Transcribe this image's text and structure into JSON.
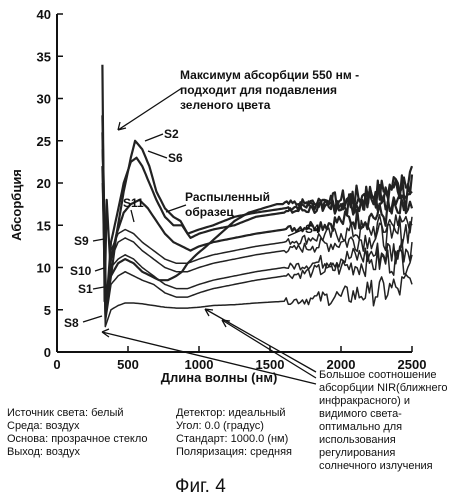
{
  "chart_data": {
    "type": "line",
    "title": "",
    "xlabel": "Длина волны (нм)",
    "ylabel": "Абсорбция",
    "xlim": [
      0,
      2500
    ],
    "ylim": [
      0,
      40
    ],
    "xticks": [
      "0",
      "500",
      "1000",
      "1500",
      "2000",
      "2500"
    ],
    "yticks": [
      "0",
      "5",
      "10",
      "15",
      "20",
      "25",
      "30",
      "35",
      "40"
    ],
    "grid": false,
    "legend": "none",
    "series": [
      {
        "name": "S2",
        "x": [
          320,
          335,
          350,
          380,
          420,
          470,
          520,
          550,
          600,
          650,
          700,
          760,
          820,
          870,
          920,
          1000,
          1100,
          1250,
          1400,
          1600,
          1800,
          2000,
          2150,
          2300,
          2400,
          2500
        ],
        "y": [
          34,
          6,
          18,
          9,
          14,
          19,
          23,
          25,
          24,
          22,
          19,
          17,
          16,
          15.5,
          14,
          14.5,
          15,
          16,
          16.5,
          17,
          17.5,
          18,
          18.5,
          19,
          20,
          22
        ]
      },
      {
        "name": "S6",
        "x": [
          320,
          345,
          380,
          420,
          470,
          520,
          560,
          600,
          650,
          700,
          760,
          820,
          880,
          940,
          1000,
          1100,
          1250,
          1400,
          1600,
          1800,
          2000,
          2150,
          2300,
          2400,
          2500
        ],
        "y": [
          28,
          5,
          13,
          16,
          20,
          22.5,
          23,
          22,
          20,
          18,
          16,
          15,
          15,
          13.5,
          14,
          14.5,
          15,
          16,
          16.5,
          17,
          17.5,
          18,
          18.5,
          19,
          21
        ]
      },
      {
        "name": "S11",
        "x": [
          320,
          345,
          380,
          420,
          470,
          520,
          580,
          640,
          700,
          760,
          820,
          880,
          940,
          1000,
          1100,
          1250,
          1400,
          1600,
          1800,
          2000,
          2200,
          2400,
          2500
        ],
        "y": [
          26,
          6,
          11,
          14,
          16.5,
          17.5,
          18,
          17,
          15.5,
          14,
          13,
          12.5,
          12,
          12.5,
          13,
          13.5,
          14,
          14.5,
          15,
          15.5,
          16,
          16.5,
          17
        ]
      },
      {
        "name": "Распыленный образец",
        "x": [
          320,
          345,
          380,
          430,
          480,
          540,
          600,
          660,
          720,
          780,
          840,
          880,
          920,
          980,
          1050,
          1150,
          1250,
          1350,
          1450,
          1550,
          1700,
          1900,
          2100,
          2300,
          2500
        ],
        "y": [
          22,
          5,
          9,
          10.5,
          11,
          10.5,
          9.5,
          9,
          8.5,
          8.5,
          9,
          9.5,
          10.5,
          11.5,
          12.5,
          14,
          15.5,
          16.5,
          17,
          17.5,
          17.5,
          17.5,
          17.5,
          18,
          19
        ]
      },
      {
        "name": "S4",
        "x": [
          320,
          345,
          380,
          430,
          480,
          540,
          600,
          680,
          760,
          840,
          920,
          1000,
          1100,
          1250,
          1400,
          1600,
          1800,
          2000,
          2200,
          2400,
          2500
        ],
        "y": [
          24,
          5,
          12,
          14,
          14.5,
          14,
          13,
          12,
          11,
          10.5,
          10.5,
          11,
          11.5,
          12,
          12.5,
          13,
          13.5,
          14,
          14.5,
          15,
          16
        ]
      },
      {
        "name": "S9",
        "x": [
          320,
          340,
          380,
          430,
          480,
          540,
          600,
          680,
          760,
          840,
          920,
          1000,
          1100,
          1250,
          1400,
          1600,
          1800,
          2000,
          2200,
          2400,
          2500
        ],
        "y": [
          25,
          4,
          11,
          13,
          13.5,
          13,
          12,
          11,
          10,
          9.5,
          9.5,
          10,
          10.5,
          11,
          11.5,
          12,
          12.5,
          13,
          13.5,
          14,
          15
        ]
      },
      {
        "name": "S10",
        "x": [
          320,
          340,
          380,
          430,
          480,
          540,
          600,
          680,
          760,
          840,
          920,
          1000,
          1100,
          1250,
          1400,
          1600,
          1800,
          2000,
          2200,
          2400,
          2500
        ],
        "y": [
          24,
          4,
          10,
          11,
          11.5,
          11,
          10,
          9,
          8,
          7.5,
          7.5,
          8,
          8.5,
          9,
          9.5,
          10,
          10.5,
          11,
          11.5,
          12,
          13
        ]
      },
      {
        "name": "S1",
        "x": [
          320,
          340,
          380,
          430,
          480,
          540,
          600,
          680,
          760,
          840,
          920,
          1000,
          1100,
          1250,
          1400,
          1600,
          1800,
          2000,
          2200,
          2400,
          2500
        ],
        "y": [
          22,
          3.5,
          8,
          9,
          9.5,
          9,
          8.5,
          8,
          7,
          6.5,
          6.5,
          7,
          7.5,
          8,
          8.5,
          9,
          9.5,
          10,
          10.5,
          11,
          11.5
        ]
      },
      {
        "name": "S8",
        "x": [
          320,
          340,
          380,
          430,
          480,
          540,
          600,
          680,
          760,
          840,
          920,
          1000,
          1100,
          1250,
          1400,
          1600,
          1800,
          2000,
          2200,
          2400,
          2500
        ],
        "y": [
          20,
          3,
          5,
          5.5,
          5.8,
          5.8,
          5.7,
          5.5,
          5.3,
          5.2,
          5.2,
          5.3,
          5.5,
          5.6,
          5.8,
          6,
          6.3,
          6.6,
          7,
          7.5,
          8
        ]
      }
    ],
    "annotations": {
      "max_note": [
        "Максимум абсорбции 550 нм -",
        "подходит для подавления",
        "зеленого цвета"
      ],
      "sprayed": [
        "Распыленный",
        "образец"
      ],
      "nir_note": [
        "Большое соотношение",
        "абсорбции NIR(ближнего",
        "инфракрасного) и",
        "видимого света-",
        "оптимально для",
        "использования",
        "регулирования",
        "солнечного излучения"
      ],
      "labels": {
        "s2": "S2",
        "s6": "S6",
        "s11": "S11",
        "s4": "S4",
        "s9": "S9",
        "s10": "S10",
        "s1": "S1",
        "s8": "S8"
      }
    }
  },
  "conditions": {
    "light_source": "Источник света: белый",
    "medium": "Среда: воздух",
    "substrate": "Основа: прозрачное стекло",
    "exit": "Выход: воздух",
    "detector": "Детектор: идеальный",
    "angle": "Угол: 0.0 (градус)",
    "standard": "Стандарт: 1000.0 (нм)",
    "polarization": "Поляризация: средняя"
  },
  "caption": "Фиг. 4"
}
